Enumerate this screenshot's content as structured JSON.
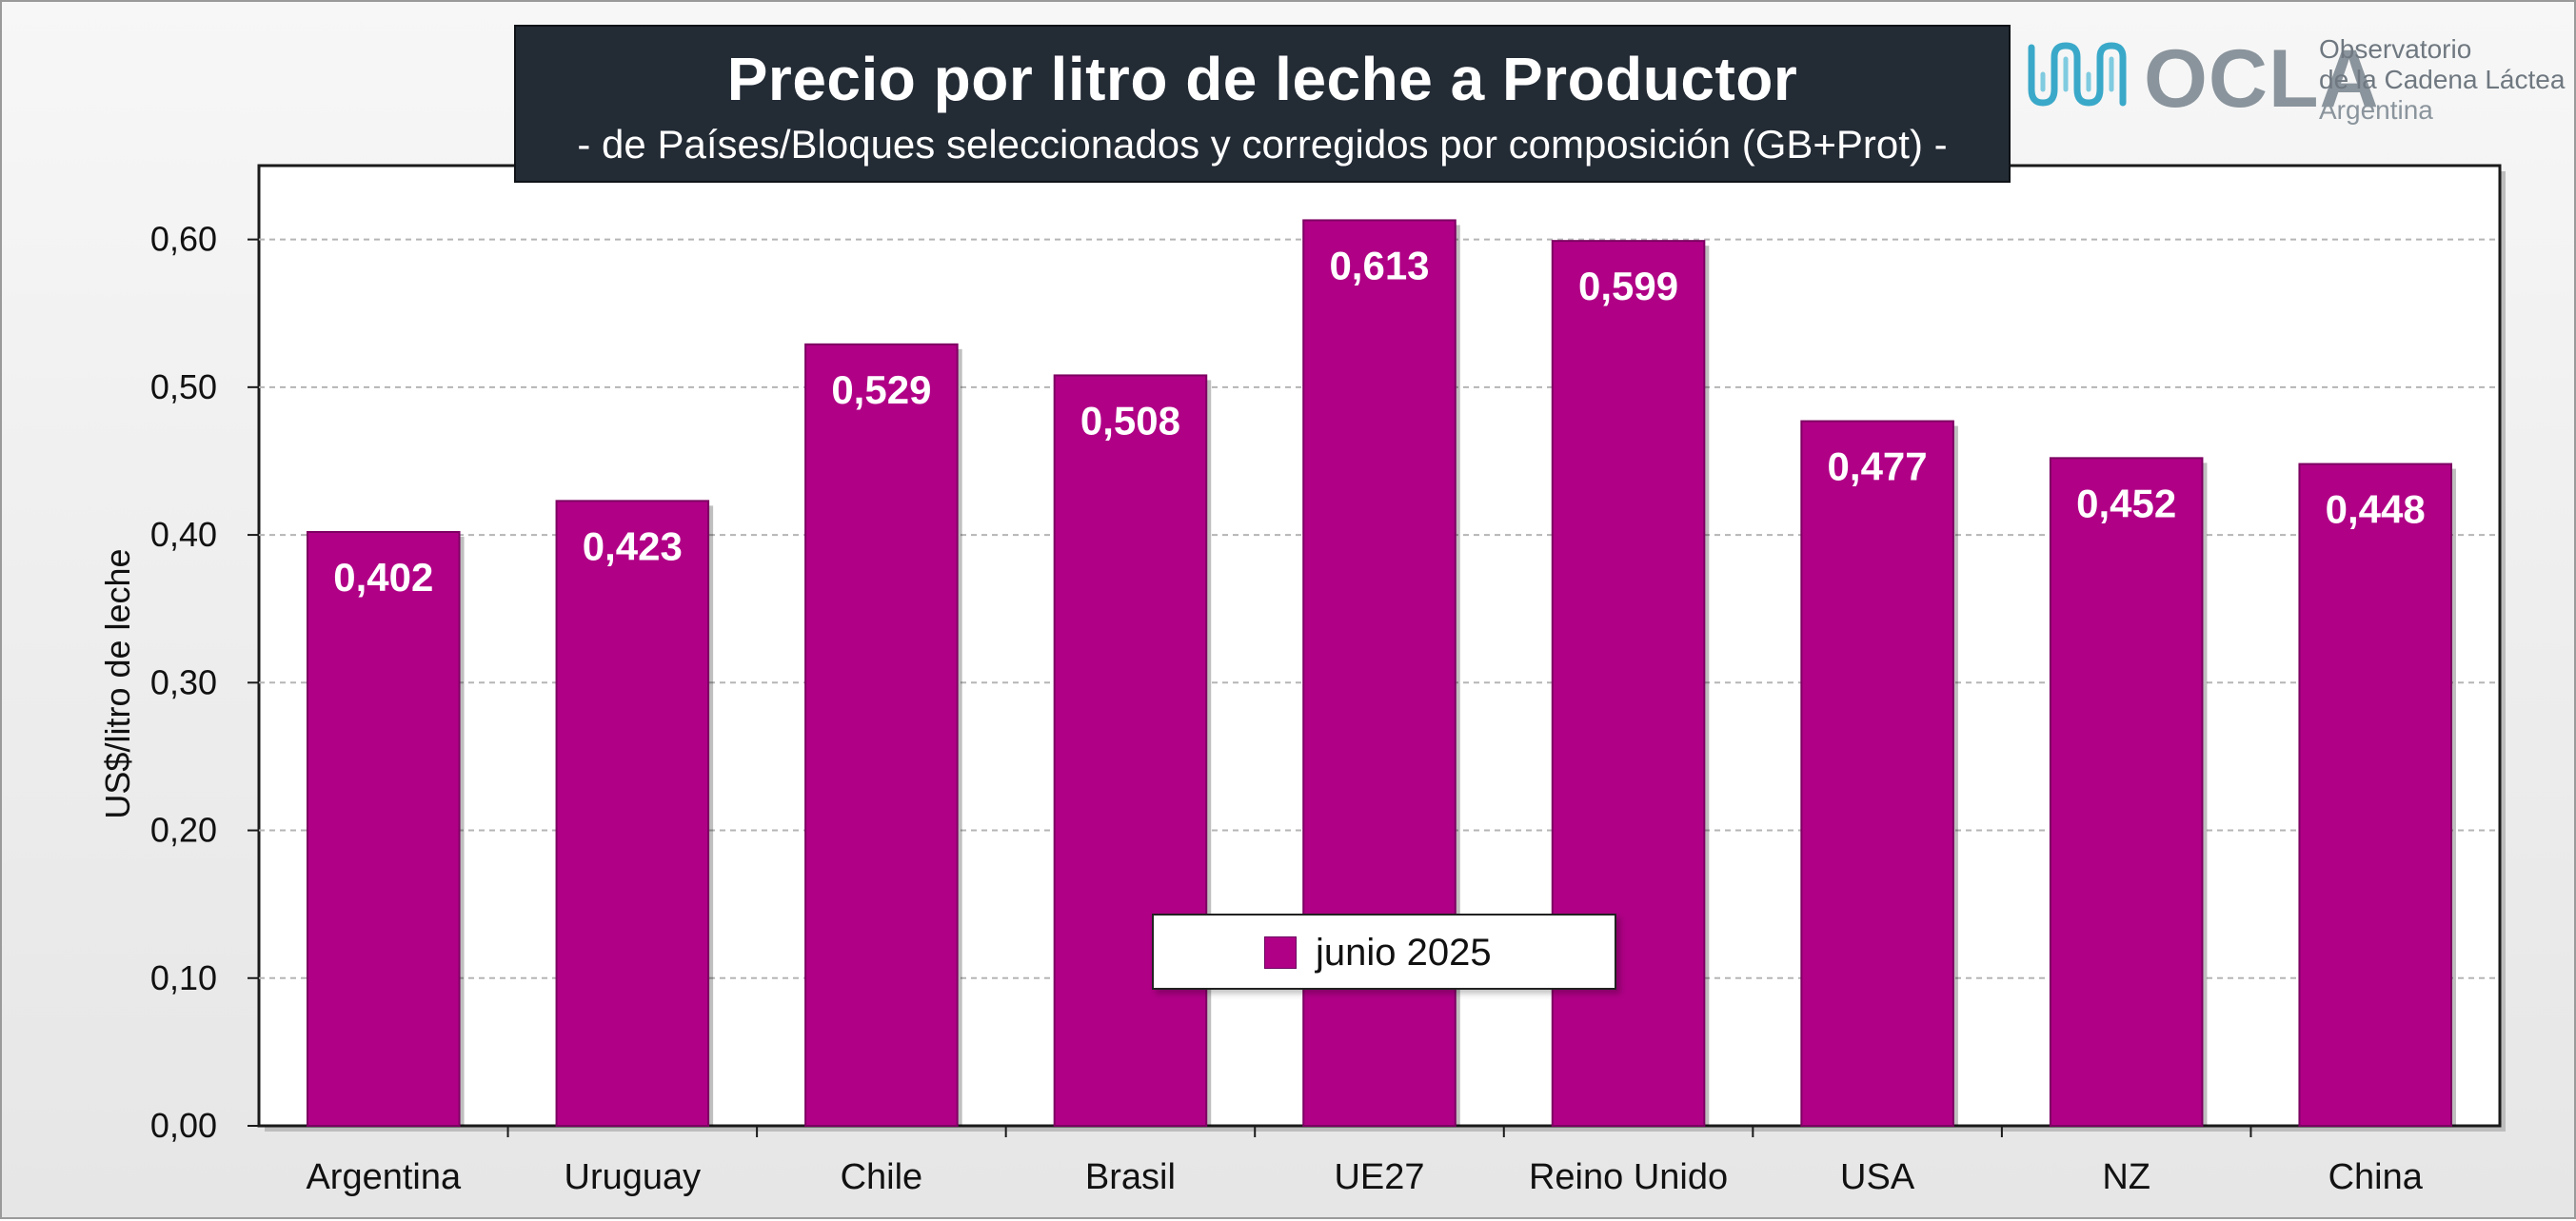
{
  "header": {
    "title": "Precio por litro de leche a Productor",
    "subtitle": "-  de Países/Bloques seleccionados y corregidos por composición (GB+Prot) -"
  },
  "logo": {
    "wordmark": "OCLA",
    "line1": "Observatorio",
    "line2": "de la Cadena Láctea",
    "line3": "Argentina",
    "color": "#8a949c",
    "icon_color": "#3aa9c9"
  },
  "colors": {
    "bar": "#b00086",
    "bar_edge": "#7d0062",
    "grid": "#b5b5b5"
  },
  "chart_data": {
    "type": "bar",
    "title": "Precio por litro de leche a Productor",
    "subtitle": "-  de Países/Bloques seleccionados y corregidos por composición (GB+Prot) -",
    "xlabel": "",
    "ylabel": "US$/litro de leche",
    "ylim": [
      0,
      0.65
    ],
    "yticks": [
      "0,00",
      "0,10",
      "0,20",
      "0,30",
      "0,40",
      "0,50",
      "0,60"
    ],
    "categories": [
      "Argentina",
      "Uruguay",
      "Chile",
      "Brasil",
      "UE27",
      "Reino Unido",
      "USA",
      "NZ",
      "China"
    ],
    "series": [
      {
        "name": "junio 2025",
        "values": [
          0.402,
          0.423,
          0.529,
          0.508,
          0.613,
          0.599,
          0.477,
          0.452,
          0.448
        ],
        "labels": [
          "0,402",
          "0,423",
          "0,529",
          "0,508",
          "0,613",
          "0,599",
          "0,477",
          "0,452",
          "0,448"
        ]
      }
    ],
    "grid": true,
    "legend_position": "bottom-center"
  }
}
